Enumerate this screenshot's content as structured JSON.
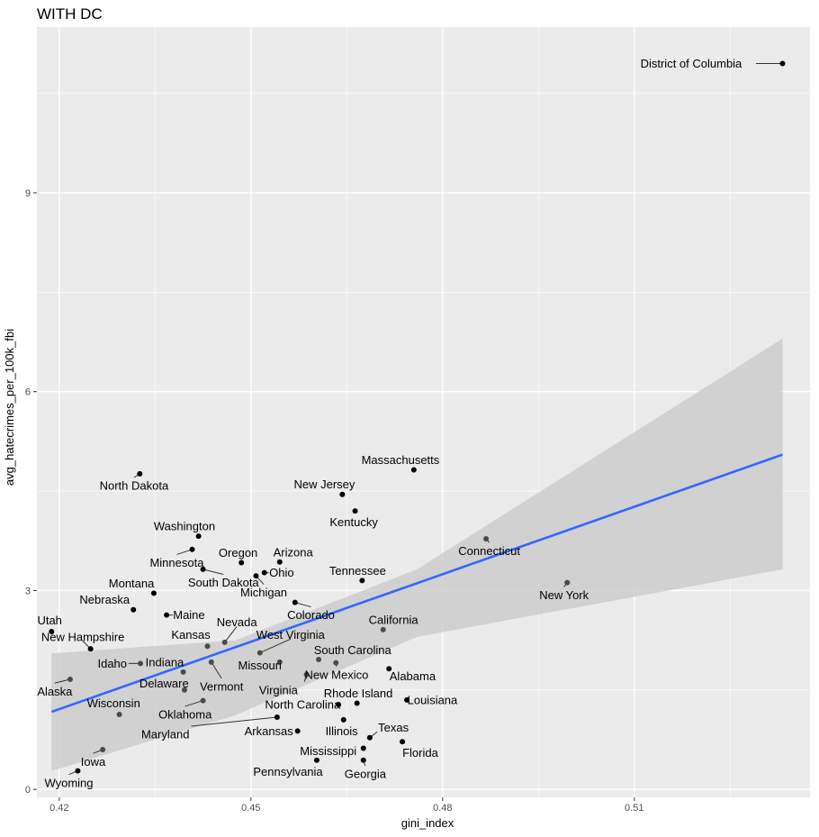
{
  "chart_data": {
    "type": "scatter",
    "title": "WITH DC",
    "xlabel": "gini_index",
    "ylabel": "avg_hatecrimes_per_100k_fbi",
    "xlim": [
      0.4165,
      0.5375
    ],
    "ylim": [
      -0.12,
      11.5
    ],
    "x_ticks": [
      0.42,
      0.45,
      0.48,
      0.51
    ],
    "x_tick_labels": [
      "0.42",
      "0.45",
      "0.48",
      "0.51"
    ],
    "y_ticks": [
      0,
      3,
      6,
      9
    ],
    "y_tick_labels": [
      "0",
      "3",
      "6",
      "9"
    ],
    "grid": true,
    "legend": "none",
    "colors": {
      "panel": "#ebebeb",
      "grid_major": "#ffffff",
      "point": "#000000",
      "point_in_band": "#4a4a4a",
      "trend_line": "#3366ff",
      "confidence_band": "#cccccc"
    },
    "trend_line": {
      "x": [
        0.4188,
        0.5332
      ],
      "y": [
        1.17,
        5.05
      ]
    },
    "confidence_band": {
      "x": [
        0.4188,
        0.4476,
        0.476,
        0.5332
      ],
      "lower": [
        0.28,
        1.12,
        2.3,
        3.32
      ],
      "upper": [
        2.05,
        2.25,
        3.32,
        6.8
      ]
    },
    "points": [
      {
        "name": "District of Columbia",
        "x": 0.5332,
        "y": 10.95,
        "lx": 0.5189,
        "ly": 10.95
      },
      {
        "name": "Massachusetts",
        "x": 0.4755,
        "y": 4.82,
        "lx": 0.4734,
        "ly": 4.97
      },
      {
        "name": "North Dakota",
        "x": 0.4326,
        "y": 4.76,
        "lx": 0.4317,
        "ly": 4.58
      },
      {
        "name": "New Jersey",
        "x": 0.4643,
        "y": 4.45,
        "lx": 0.4615,
        "ly": 4.6
      },
      {
        "name": "Kentucky",
        "x": 0.4663,
        "y": 4.2,
        "lx": 0.4661,
        "ly": 4.03
      },
      {
        "name": "Connecticut",
        "x": 0.4868,
        "y": 3.78,
        "lx": 0.4873,
        "ly": 3.6
      },
      {
        "name": "Washington",
        "x": 0.4418,
        "y": 3.82,
        "lx": 0.4396,
        "ly": 3.97
      },
      {
        "name": "Minnesota",
        "x": 0.4408,
        "y": 3.62,
        "lx": 0.4384,
        "ly": 3.42
      },
      {
        "name": "Oregon",
        "x": 0.4485,
        "y": 3.42,
        "lx": 0.448,
        "ly": 3.57
      },
      {
        "name": "Arizona",
        "x": 0.4545,
        "y": 3.43,
        "lx": 0.4566,
        "ly": 3.58
      },
      {
        "name": "South Dakota",
        "x": 0.4425,
        "y": 3.32,
        "lx": 0.4457,
        "ly": 3.12
      },
      {
        "name": "Ohio",
        "x": 0.4521,
        "y": 3.27,
        "lx": 0.4548,
        "ly": 3.27
      },
      {
        "name": "Tennessee",
        "x": 0.4674,
        "y": 3.15,
        "lx": 0.4667,
        "ly": 3.3
      },
      {
        "name": "Montana",
        "x": 0.4348,
        "y": 2.96,
        "lx": 0.4313,
        "ly": 3.11
      },
      {
        "name": "New York",
        "x": 0.4995,
        "y": 3.12,
        "lx": 0.499,
        "ly": 2.93
      },
      {
        "name": "Michigan",
        "x": 0.4508,
        "y": 3.22,
        "lx": 0.452,
        "ly": 2.97
      },
      {
        "name": "Nebraska",
        "x": 0.4316,
        "y": 2.71,
        "lx": 0.4271,
        "ly": 2.86
      },
      {
        "name": "Colorado",
        "x": 0.4569,
        "y": 2.82,
        "lx": 0.4594,
        "ly": 2.63
      },
      {
        "name": "Maine",
        "x": 0.4368,
        "y": 2.63,
        "lx": 0.4403,
        "ly": 2.63
      },
      {
        "name": "California",
        "x": 0.4707,
        "y": 2.41,
        "lx": 0.4723,
        "ly": 2.56
      },
      {
        "name": "Utah",
        "x": 0.4188,
        "y": 2.38,
        "lx": 0.4185,
        "ly": 2.55
      },
      {
        "name": "Nevada",
        "x": 0.4459,
        "y": 2.22,
        "lx": 0.4478,
        "ly": 2.52
      },
      {
        "name": "Kansas",
        "x": 0.4432,
        "y": 2.16,
        "lx": 0.4406,
        "ly": 2.33
      },
      {
        "name": "West Virginia",
        "x": 0.4514,
        "y": 2.06,
        "lx": 0.4562,
        "ly": 2.33
      },
      {
        "name": "New Hampshire",
        "x": 0.4249,
        "y": 2.12,
        "lx": 0.4237,
        "ly": 2.3
      },
      {
        "name": "South Carolina",
        "x": 0.4606,
        "y": 1.96,
        "lx": 0.4659,
        "ly": 2.1
      },
      {
        "name": "Idaho",
        "x": 0.4327,
        "y": 1.9,
        "lx": 0.4283,
        "ly": 1.9
      },
      {
        "name": "Indiana",
        "x": 0.4394,
        "y": 1.77,
        "lx": 0.4365,
        "ly": 1.92
      },
      {
        "name": "Missouri",
        "x": 0.4545,
        "y": 1.92,
        "lx": 0.4514,
        "ly": 1.87
      },
      {
        "name": "New Mexico",
        "x": 0.4633,
        "y": 1.91,
        "lx": 0.4634,
        "ly": 1.73
      },
      {
        "name": "Alabama",
        "x": 0.4716,
        "y": 1.82,
        "lx": 0.4753,
        "ly": 1.71
      },
      {
        "name": "Alaska",
        "x": 0.4217,
        "y": 1.66,
        "lx": 0.4193,
        "ly": 1.48
      },
      {
        "name": "Delaware",
        "x": 0.4396,
        "y": 1.5,
        "lx": 0.4364,
        "ly": 1.6
      },
      {
        "name": "Vermont",
        "x": 0.4438,
        "y": 1.92,
        "lx": 0.4454,
        "ly": 1.55
      },
      {
        "name": "Virginia",
        "x": 0.4587,
        "y": 1.73,
        "lx": 0.4543,
        "ly": 1.5
      },
      {
        "name": "Wisconsin",
        "x": 0.4294,
        "y": 1.13,
        "lx": 0.4285,
        "ly": 1.3
      },
      {
        "name": "Oklahoma",
        "x": 0.4425,
        "y": 1.34,
        "lx": 0.4397,
        "ly": 1.13
      },
      {
        "name": "Rhode Island",
        "x": 0.4666,
        "y": 1.3,
        "lx": 0.4668,
        "ly": 1.45
      },
      {
        "name": "North Carolina",
        "x": 0.4637,
        "y": 1.28,
        "lx": 0.4581,
        "ly": 1.28
      },
      {
        "name": "Louisiana",
        "x": 0.4744,
        "y": 1.35,
        "lx": 0.4784,
        "ly": 1.35
      },
      {
        "name": "Arkansas",
        "x": 0.4573,
        "y": 0.88,
        "lx": 0.4528,
        "ly": 0.88
      },
      {
        "name": "Maryland",
        "x": 0.4541,
        "y": 1.09,
        "lx": 0.4366,
        "ly": 0.83
      },
      {
        "name": "Illinois",
        "x": 0.4645,
        "y": 1.05,
        "lx": 0.4642,
        "ly": 0.88
      },
      {
        "name": "Texas",
        "x": 0.4686,
        "y": 0.78,
        "lx": 0.4723,
        "ly": 0.93
      },
      {
        "name": "Florida",
        "x": 0.4737,
        "y": 0.72,
        "lx": 0.4765,
        "ly": 0.55
      },
      {
        "name": "Mississippi",
        "x": 0.4676,
        "y": 0.62,
        "lx": 0.4621,
        "ly": 0.58
      },
      {
        "name": "Pennsylvania",
        "x": 0.4603,
        "y": 0.44,
        "lx": 0.4558,
        "ly": 0.27
      },
      {
        "name": "Georgia",
        "x": 0.4676,
        "y": 0.44,
        "lx": 0.4679,
        "ly": 0.23
      },
      {
        "name": "Iowa",
        "x": 0.4268,
        "y": 0.6,
        "lx": 0.4253,
        "ly": 0.42
      },
      {
        "name": "Wyoming",
        "x": 0.4229,
        "y": 0.28,
        "lx": 0.4215,
        "ly": 0.1
      }
    ]
  }
}
